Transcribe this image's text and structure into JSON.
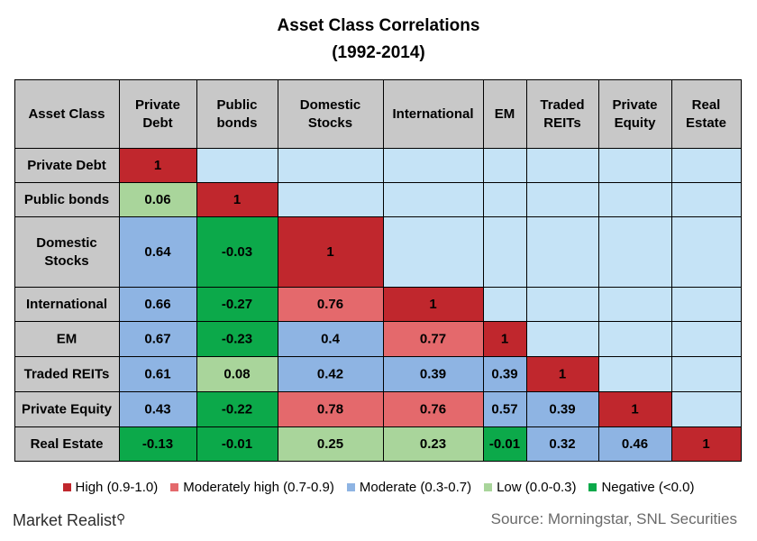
{
  "title_line1": "Asset Class Correlations",
  "title_line2": "(1992-2014)",
  "chart_data": {
    "type": "heatmap",
    "corner_label": "Asset Class",
    "columns": [
      "Private\nDebt",
      "Public\nbonds",
      "Domestic\nStocks",
      "International",
      "EM",
      "Traded\nREITs",
      "Private\nEquity",
      "Real\nEstate"
    ],
    "rows": [
      "Private Debt",
      "Public bonds",
      "Domestic\nStocks",
      "International",
      "EM",
      "Traded REITs",
      "Private Equity",
      "Real Estate"
    ],
    "values": [
      [
        "1"
      ],
      [
        "0.06",
        "1"
      ],
      [
        "0.64",
        "-0.03",
        "1"
      ],
      [
        "0.66",
        "-0.27",
        "0.76",
        "1"
      ],
      [
        "0.67",
        "-0.23",
        "0.4",
        "0.77",
        "1"
      ],
      [
        "0.61",
        "0.08",
        "0.42",
        "0.39",
        "0.39",
        "1"
      ],
      [
        "0.43",
        "-0.22",
        "0.78",
        "0.76",
        "0.57",
        "0.39",
        "1"
      ],
      [
        "-0.13",
        "-0.01",
        "0.25",
        "0.23",
        "-0.01",
        "0.32",
        "0.46",
        "1"
      ]
    ],
    "colors": {
      "high": "#c0272d",
      "moderately_high": "#e4696c",
      "moderate": "#8eb4e3",
      "low": "#a9d59b",
      "negative": "#0ca94a",
      "empty": "#c5e3f6",
      "header": "#c8c8c8"
    }
  },
  "legend": [
    {
      "label": "High (0.9-1.0)",
      "color": "#c0272d"
    },
    {
      "label": "Moderately high (0.7-0.9)",
      "color": "#e4696c"
    },
    {
      "label": "Moderate (0.3-0.7)",
      "color": "#8eb4e3"
    },
    {
      "label": "Low (0.0-0.3)",
      "color": "#a9d59b"
    },
    {
      "label": "Negative (<0.0)",
      "color": "#0ca94a"
    }
  ],
  "brand": "Market Realist",
  "brand_icon": "magnifier-icon",
  "source": "Source: Morningstar, SNL Securities"
}
